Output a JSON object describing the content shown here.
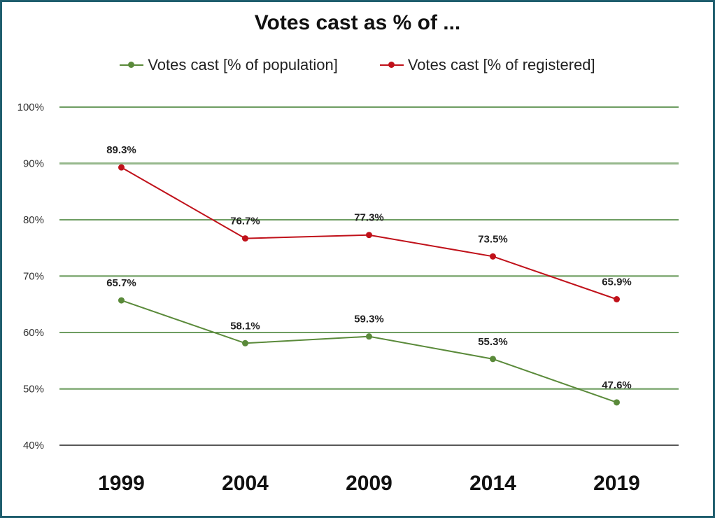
{
  "chart_data": {
    "type": "line",
    "title": "Votes cast as % of ...",
    "categories": [
      "1999",
      "2004",
      "2009",
      "2014",
      "2019"
    ],
    "ylim": [
      40,
      100
    ],
    "yticks": [
      "40%",
      "50%",
      "60%",
      "70%",
      "80%",
      "90%",
      "100%"
    ],
    "ytick_values": [
      40,
      50,
      60,
      70,
      80,
      90,
      100
    ],
    "grid": true,
    "legend_position": "top",
    "series": [
      {
        "name": "Votes cast [% of population]",
        "color": "#5a8a3a",
        "values": [
          65.7,
          58.1,
          59.3,
          55.3,
          47.6
        ],
        "labels": [
          "65.7%",
          "58.1%",
          "59.3%",
          "55.3%",
          "47.6%"
        ]
      },
      {
        "name": "Votes cast [% of registered]",
        "color": "#c0111a",
        "values": [
          89.3,
          76.7,
          77.3,
          73.5,
          65.9
        ],
        "labels": [
          "89.3%",
          "76.7%",
          "77.3%",
          "73.5%",
          "65.9%"
        ]
      }
    ]
  }
}
